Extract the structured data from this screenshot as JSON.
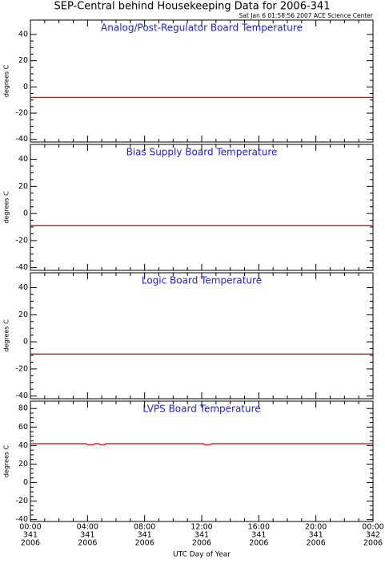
{
  "title": "SEP-Central behind Housekeeping Data for 2006-341",
  "subtitle": "Sat Jan  6 01:58:56 2007 ACE Science Center",
  "x_label": "UTC Day of Year",
  "chart_data": [
    {
      "type": "line",
      "title": "Analog/Post-Regulator Board Temperature",
      "y_label": "degrees C",
      "x": [
        0,
        24
      ],
      "series": [
        {
          "color": "#ff0000",
          "values": [
            -8,
            -8
          ]
        }
      ],
      "xlim": [
        0,
        24
      ],
      "xticks": [
        0,
        4,
        8,
        12,
        16,
        20,
        24
      ],
      "ylim": [
        -42,
        51
      ],
      "yticks": [
        -40,
        -20,
        0,
        20,
        40
      ]
    },
    {
      "type": "line",
      "title": "Bias Supply Board Temperature",
      "y_label": "degrees C",
      "x": [
        0,
        24
      ],
      "series": [
        {
          "color": "#ff0000",
          "values": [
            -9,
            -9
          ]
        }
      ],
      "xlim": [
        0,
        24
      ],
      "xticks": [
        0,
        4,
        8,
        12,
        16,
        20,
        24
      ],
      "ylim": [
        -42,
        51
      ],
      "yticks": [
        -40,
        -20,
        0,
        20,
        40
      ]
    },
    {
      "type": "line",
      "title": "Logic Board Temperature",
      "y_label": "degrees C",
      "x": [
        0,
        24
      ],
      "series": [
        {
          "color": "#ff0000",
          "values": [
            -9,
            -9
          ]
        }
      ],
      "xlim": [
        0,
        24
      ],
      "xticks": [
        0,
        4,
        8,
        12,
        16,
        20,
        24
      ],
      "ylim": [
        -42,
        51
      ],
      "yticks": [
        -40,
        -20,
        0,
        20,
        40
      ]
    },
    {
      "type": "line",
      "title": "LVPS Board Temperature",
      "y_label": "degrees C",
      "x": [
        0,
        3.9,
        4.0,
        4.4,
        4.5,
        4.8,
        4.9,
        5.2,
        5.3,
        12.1,
        12.2,
        12.6,
        12.7,
        13.0,
        13.1,
        24
      ],
      "series": [
        {
          "color": "#ff0000",
          "values": [
            42,
            42,
            41,
            41,
            42,
            42,
            41,
            41,
            42,
            42,
            41,
            41,
            42,
            42,
            42,
            42
          ]
        }
      ],
      "xlim": [
        0,
        24
      ],
      "xticks": [
        {
          "value": 0,
          "label": "00:00"
        },
        {
          "value": 4,
          "label": "04:00"
        },
        {
          "value": 8,
          "label": "08:00"
        },
        {
          "value": 12,
          "label": "12:00"
        },
        {
          "value": 16,
          "label": "16:00"
        },
        {
          "value": 20,
          "label": "20:00"
        },
        {
          "value": 24,
          "label": "00:00"
        }
      ],
      "xtick_doy": [
        "341",
        "341",
        "341",
        "341",
        "341",
        "341",
        "342"
      ],
      "xtick_year": [
        "2006",
        "2006",
        "2006",
        "2006",
        "2006",
        "2006",
        "2006"
      ],
      "ylim": [
        -42,
        88
      ],
      "yticks": [
        -40,
        -20,
        0,
        20,
        40,
        60,
        80
      ]
    }
  ]
}
